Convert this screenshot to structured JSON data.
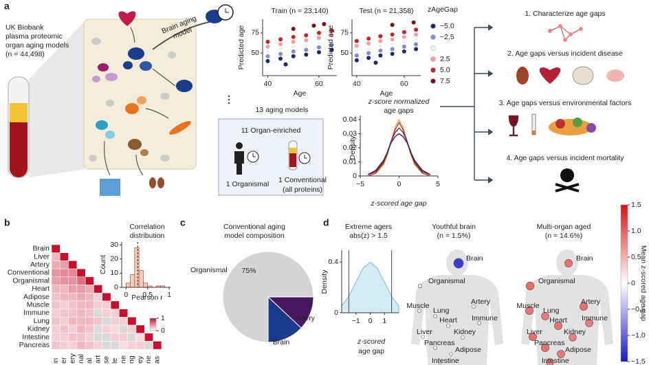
{
  "figure": {
    "a": {
      "label": "a",
      "cohort": [
        "UK Biobank",
        "plasma proteomic",
        "organ aging models",
        "(n = 44,498)"
      ],
      "model_label": [
        "Brain aging",
        "model"
      ],
      "scatter": [
        {
          "title": "Train (n = 23,140)",
          "x_label": "Age",
          "y_label": "Predicted age",
          "xlim": [
            38,
            67
          ],
          "ylim": [
            22,
            92
          ],
          "xticks": [
            40,
            60
          ],
          "yticks": [
            50,
            75
          ],
          "points": [
            [
              40,
              40,
              -5
            ],
            [
              40,
              46,
              -2.5
            ],
            [
              40,
              52,
              0
            ],
            [
              40,
              58,
              2.5
            ],
            [
              40,
              64,
              5
            ],
            [
              45,
              43,
              -5
            ],
            [
              45,
              49,
              -2.5
            ],
            [
              45,
              55,
              0
            ],
            [
              45,
              61,
              2.5
            ],
            [
              45,
              67,
              5
            ],
            [
              50,
              46,
              -5
            ],
            [
              50,
              52,
              -2.5
            ],
            [
              50,
              58,
              0
            ],
            [
              50,
              64,
              2.5
            ],
            [
              50,
              70,
              5
            ],
            [
              55,
              48,
              -5
            ],
            [
              55,
              54,
              -2.5
            ],
            [
              55,
              60,
              0
            ],
            [
              55,
              66,
              2.5
            ],
            [
              55,
              72,
              5
            ],
            [
              60,
              51,
              -5
            ],
            [
              60,
              57,
              -2.5
            ],
            [
              60,
              63,
              0
            ],
            [
              60,
              69,
              2.5
            ],
            [
              60,
              75,
              5
            ],
            [
              65,
              54,
              -5
            ],
            [
              65,
              60,
              -2.5
            ],
            [
              65,
              66,
              0
            ],
            [
              65,
              72,
              2.5
            ],
            [
              65,
              78,
              5
            ],
            [
              50,
              80,
              7.5
            ],
            [
              62,
              86,
              7.5
            ],
            [
              58,
              84,
              7.5
            ],
            [
              47,
              36,
              -5
            ]
          ]
        },
        {
          "title": "Test (n = 21,358)",
          "x_label": "Age",
          "y_label": "Predicted age",
          "xlim": [
            38,
            67
          ],
          "ylim": [
            22,
            92
          ],
          "xticks": [
            40,
            60
          ],
          "yticks": [
            50,
            75
          ],
          "points": [
            [
              40,
              41,
              -5
            ],
            [
              40,
              47,
              -2.5
            ],
            [
              40,
              53,
              0
            ],
            [
              40,
              59,
              2.5
            ],
            [
              40,
              65,
              5
            ],
            [
              45,
              44,
              -5
            ],
            [
              45,
              50,
              -2.5
            ],
            [
              45,
              56,
              0
            ],
            [
              45,
              62,
              2.5
            ],
            [
              45,
              68,
              5
            ],
            [
              50,
              47,
              -5
            ],
            [
              50,
              53,
              -2.5
            ],
            [
              50,
              59,
              0
            ],
            [
              50,
              65,
              2.5
            ],
            [
              50,
              71,
              5
            ],
            [
              55,
              49,
              -5
            ],
            [
              55,
              55,
              -2.5
            ],
            [
              55,
              61,
              0
            ],
            [
              55,
              67,
              2.5
            ],
            [
              55,
              73,
              5
            ],
            [
              60,
              52,
              -5
            ],
            [
              60,
              58,
              -2.5
            ],
            [
              60,
              64,
              0
            ],
            [
              60,
              70,
              2.5
            ],
            [
              60,
              76,
              5
            ],
            [
              65,
              55,
              -5
            ],
            [
              65,
              61,
              -2.5
            ],
            [
              65,
              67,
              0
            ],
            [
              65,
              73,
              2.5
            ],
            [
              65,
              79,
              5
            ],
            [
              55,
              85,
              7.5
            ],
            [
              64,
              88,
              7.5
            ],
            [
              48,
              38,
              -5
            ]
          ]
        }
      ],
      "legend": {
        "title": "zAgeGap",
        "entries": [
          {
            "value": -5,
            "label": "−5.0",
            "color": "#1d2a6b"
          },
          {
            "value": -2.5,
            "label": "−2.5",
            "color": "#7b8fd0"
          },
          {
            "value": 0,
            "color": "#f2f2f2"
          },
          {
            "value": 2.5,
            "label": "2.5",
            "color": "#f0a0a0"
          },
          {
            "value": 5,
            "label": "5.0",
            "color": "#c0262c"
          },
          {
            "value": 7.5,
            "label": "7.5",
            "color": "#7a0d14"
          }
        ]
      },
      "models": {
        "title": "13 aging models",
        "organ": "11 Organ-enriched",
        "organismal": "1 Organismal",
        "conventional": [
          "1 Conventional",
          "(all proteins)"
        ]
      },
      "density": {
        "title": [
          "z-score normalized",
          "age gaps"
        ],
        "x_label": "z-scored age gap",
        "y_label": "Density",
        "xlim": [
          -5,
          5
        ],
        "ylim": [
          0,
          0.04
        ],
        "xticks": [
          {
            "value": -5,
            "label": "−5"
          },
          0,
          5
        ],
        "yticks": [
          0,
          0.01,
          0.02,
          0.03,
          0.04
        ],
        "x": [
          -4,
          -3,
          -2,
          -1.5,
          -1,
          -0.5,
          0,
          0.5,
          1,
          1.5,
          2,
          3,
          4
        ],
        "series": [
          {
            "color": "#e8b04a",
            "values": [
              0,
              0.002,
              0.008,
              0.015,
              0.025,
              0.035,
              0.04,
              0.035,
              0.025,
              0.015,
              0.008,
              0.002,
              0
            ]
          },
          {
            "color": "#c0392b",
            "values": [
              0,
              0.002,
              0.009,
              0.016,
              0.025,
              0.033,
              0.038,
              0.033,
              0.025,
              0.016,
              0.009,
              0.002,
              0
            ]
          },
          {
            "color": "#7b2c4f",
            "values": [
              0.001,
              0.003,
              0.01,
              0.017,
              0.025,
              0.031,
              0.034,
              0.031,
              0.025,
              0.017,
              0.01,
              0.003,
              0.001
            ]
          },
          {
            "color": "#3b1f4f",
            "values": [
              0.001,
              0.004,
              0.011,
              0.017,
              0.024,
              0.028,
              0.03,
              0.028,
              0.024,
              0.017,
              0.011,
              0.004,
              0.001
            ]
          }
        ]
      },
      "steps": [
        "1. Characterize age gaps",
        "2. Age gaps versus incident disease",
        "3. Age gaps versus environmental factors",
        "4. Age gaps versus incident mortality"
      ]
    },
    "b": {
      "label": "b",
      "heatmap": {
        "rows": [
          "Brain",
          "Liver",
          "Artery",
          "Conventional",
          "Organismal",
          "Heart",
          "Adipose",
          "Muscle",
          "Immune",
          "Lung",
          "Kidney",
          "Intestine",
          "Pancreas"
        ],
        "cols": [
          "in",
          "er",
          "ery",
          "nal",
          "al",
          "art",
          "se",
          "le",
          "ne",
          "ng",
          "ey",
          "ne",
          "as"
        ],
        "values": [
          [
            1
          ],
          [
            0.3,
            1
          ],
          [
            0.35,
            0.4,
            1
          ],
          [
            0.45,
            0.5,
            0.5,
            1
          ],
          [
            0.4,
            0.45,
            0.45,
            0.6,
            1
          ],
          [
            0.3,
            0.3,
            0.4,
            0.4,
            0.35,
            1
          ],
          [
            0.25,
            0.3,
            0.3,
            0.35,
            0.3,
            0.2,
            1
          ],
          [
            0.25,
            0.2,
            0.25,
            0.3,
            0.3,
            0.2,
            0.2,
            1
          ],
          [
            0.2,
            0.25,
            0.25,
            0.3,
            0.25,
            null,
            0.2,
            0.2,
            1
          ],
          [
            0.25,
            0.2,
            0.3,
            0.3,
            0.3,
            0.25,
            null,
            0.2,
            0.2,
            1
          ],
          [
            0.2,
            0.25,
            0.2,
            0.3,
            0.25,
            null,
            0.2,
            0.15,
            null,
            0.2,
            1
          ],
          [
            0.2,
            0.2,
            0.25,
            0.25,
            0.2,
            null,
            null,
            0.2,
            0.2,
            null,
            0.15,
            1
          ],
          [
            0.25,
            0.2,
            0.2,
            0.3,
            0.25,
            0.2,
            null,
            null,
            0.15,
            0.2,
            0.2,
            null,
            1
          ]
        ],
        "null_color": "#d9d9d9",
        "color_scale": {
          "lim": [
            0,
            1
          ],
          "ticks": [
            0,
            1
          ],
          "colors": [
            "#ffffff",
            "#c8102e"
          ]
        }
      },
      "histogram": {
        "title": [
          "Correlation",
          "distribution"
        ],
        "x_label": "Pearson r",
        "y_label": "Count",
        "xlim": [
          -0.1,
          1.03
        ],
        "ylim": [
          0,
          32
        ],
        "xticks": [
          0,
          0.5,
          1
        ],
        "yticks": [
          0,
          10,
          20,
          30
        ],
        "bins": [
          0,
          0.1,
          0.2,
          0.3,
          0.4,
          0.5,
          0.6,
          0.7,
          0.8,
          0.9
        ],
        "counts": [
          3,
          9,
          28,
          12,
          3,
          1,
          0,
          1,
          1
        ],
        "mean": 0.27,
        "color": "#f6c9b9"
      }
    },
    "c": {
      "label": "c",
      "title": [
        "Conventional aging",
        "model composition"
      ],
      "type": "pie",
      "slices": [
        {
          "name": "Organismal",
          "value": 75,
          "value_label": "75%",
          "color": "#d4d4d4"
        },
        {
          "name": "Artery",
          "value": 12,
          "color": "#4a1860"
        },
        {
          "name": "Brain",
          "value": 13,
          "color": "#1a3a8c"
        }
      ]
    },
    "d": {
      "label": "d",
      "density": {
        "title": [
          "Extreme agers",
          "abs(z) > 1.5"
        ],
        "x_label": [
          "z-scored",
          "age gap"
        ],
        "y_label": "Density",
        "xlim": [
          -2,
          2
        ],
        "ylim": [
          0,
          0.45
        ],
        "xticks": [
          {
            "value": -1,
            "label": "−1"
          },
          0,
          1
        ],
        "yticks": [
          0,
          0.4
        ],
        "x": [
          -2,
          -1.5,
          -1,
          -0.5,
          0,
          0.5,
          1,
          1.5,
          2
        ],
        "values": [
          0.054,
          0.13,
          0.242,
          0.352,
          0.399,
          0.352,
          0.242,
          0.13,
          0.054
        ],
        "thresholds": [
          -1.5,
          1.5
        ]
      },
      "organs": [
        "Brain",
        "Organismal",
        "Muscle",
        "Lung",
        "Heart",
        "Artery",
        "Immune",
        "Liver",
        "Kidney",
        "Pancreas",
        "Adipose",
        "Intestine"
      ],
      "bodies": [
        {
          "title": [
            "Youthful brain",
            "(n = 1.5%)"
          ],
          "values": [
            -1.3,
            0.1,
            0,
            0,
            0,
            0,
            0.05,
            0,
            0,
            0,
            0,
            0
          ]
        },
        {
          "title": [
            "Multi-organ aged",
            "(n = 14.6%)"
          ],
          "values": [
            0.9,
            0.95,
            0.9,
            0.85,
            0.9,
            0.9,
            0.85,
            0.9,
            0.8,
            0.9,
            0.85,
            0.8
          ]
        }
      ],
      "color_scale": {
        "label": "Mean z-scored age gap",
        "lim": [
          -1.5,
          1.5
        ],
        "colors": [
          "#1a1acc",
          "#ffffff",
          "#dd1111"
        ],
        "ticks": [
          {
            "value": 1.5,
            "label": "1.5"
          },
          {
            "value": 1,
            "label": "1.0"
          },
          0.5,
          0,
          {
            "value": -0.5,
            "label": "−0.5"
          },
          {
            "value": -1,
            "label": "−1.0"
          },
          {
            "value": -1.5,
            "label": "−1.5"
          }
        ]
      }
    }
  }
}
